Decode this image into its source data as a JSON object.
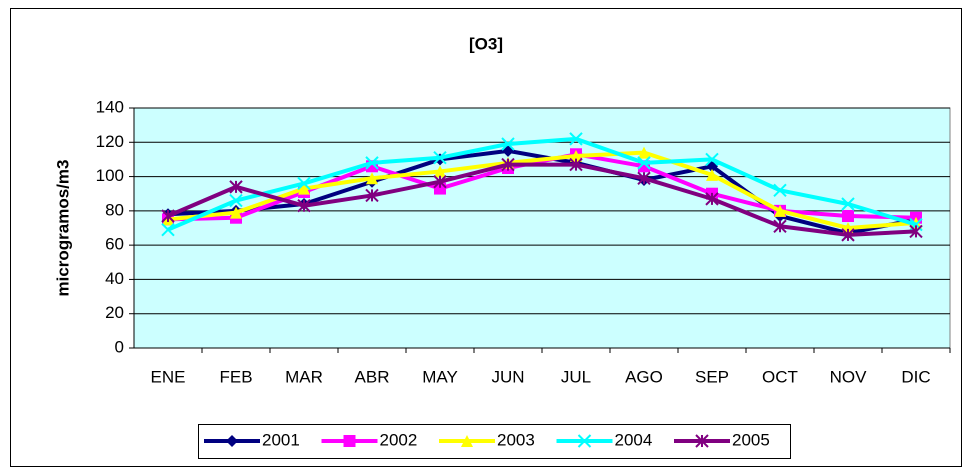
{
  "chart_data": {
    "type": "line",
    "title": "[O3]",
    "y_label": "microgramos/m3",
    "categories": [
      "ENE",
      "FEB",
      "MAR",
      "ABR",
      "MAY",
      "JUN",
      "JUL",
      "AGO",
      "SEP",
      "OCT",
      "NOV",
      "DIC"
    ],
    "ylim": [
      0,
      140
    ],
    "yticks": [
      0,
      20,
      40,
      60,
      80,
      100,
      120,
      140
    ],
    "grid": true,
    "legend": "bottom",
    "series": [
      {
        "name": "2001",
        "color": "#000080",
        "marker": "diamond",
        "values": [
          78,
          80,
          84,
          97,
          110,
          115,
          108,
          98,
          106,
          77,
          67,
          75
        ]
      },
      {
        "name": "2002",
        "color": "#ff00ff",
        "marker": "square",
        "values": [
          75,
          76,
          91,
          106,
          93,
          105,
          113,
          106,
          90,
          80,
          77,
          76
        ]
      },
      {
        "name": "2003",
        "color": "#ffff00",
        "marker": "triangle",
        "values": [
          75,
          79,
          93,
          99,
          103,
          108,
          112,
          114,
          101,
          80,
          70,
          73
        ]
      },
      {
        "name": "2004",
        "color": "#00ffff",
        "marker": "x",
        "values": [
          69,
          86,
          96,
          108,
          111,
          119,
          122,
          108,
          110,
          92,
          84,
          72
        ]
      },
      {
        "name": "2005",
        "color": "#800080",
        "marker": "star",
        "values": [
          77,
          94,
          83,
          89,
          97,
          107,
          107,
          99,
          87,
          71,
          66,
          68
        ]
      }
    ]
  }
}
